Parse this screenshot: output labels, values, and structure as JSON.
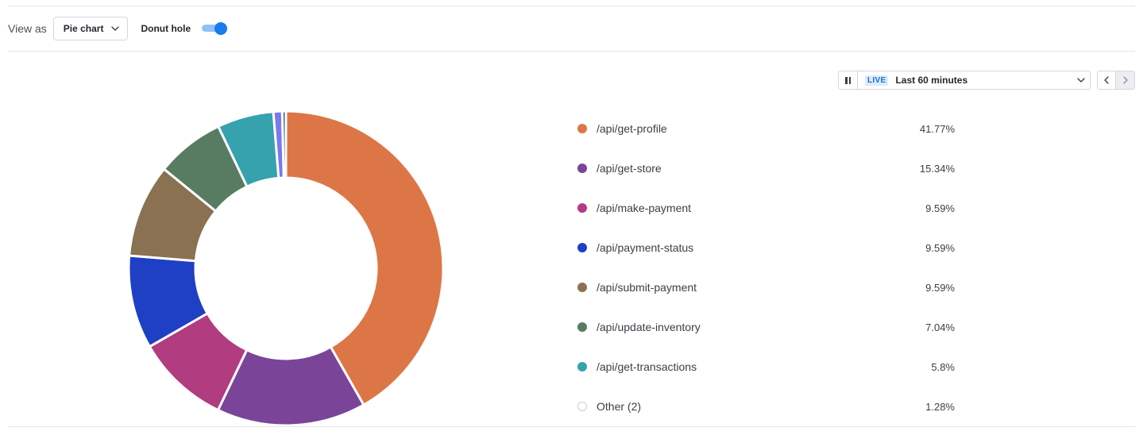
{
  "toolbar": {
    "view_as_label": "View as",
    "view_select_value": "Pie chart",
    "donut_label": "Donut hole",
    "donut_enabled": true
  },
  "time_picker": {
    "live_badge": "LIVE",
    "range_label": "Last 60 minutes"
  },
  "colors": {
    "accent": "#1a7ceb"
  },
  "icons": {
    "view_select": "chevron-down-icon",
    "pause": "pause-icon",
    "time_select": "chevron-down-icon",
    "prev": "chevron-left-icon",
    "next": "chevron-right-icon"
  },
  "chart_data": {
    "type": "pie",
    "donut": true,
    "legend_position": "right",
    "slices": [
      {
        "label": "/api/get-profile",
        "value": 41.77,
        "display": "41.77%",
        "color": "#dd7647"
      },
      {
        "label": "/api/get-store",
        "value": 15.34,
        "display": "15.34%",
        "color": "#7a4599"
      },
      {
        "label": "/api/make-payment",
        "value": 9.59,
        "display": "9.59%",
        "color": "#b13c80"
      },
      {
        "label": "/api/payment-status",
        "value": 9.59,
        "display": "9.59%",
        "color": "#1f3fc4"
      },
      {
        "label": "/api/submit-payment",
        "value": 9.59,
        "display": "9.59%",
        "color": "#8a7152"
      },
      {
        "label": "/api/update-inventory",
        "value": 7.04,
        "display": "7.04%",
        "color": "#587c62"
      },
      {
        "label": "/api/get-transactions",
        "value": 5.8,
        "display": "5.8%",
        "color": "#36a2ae"
      },
      {
        "label": "Other (2)",
        "value": 1.28,
        "display": "1.28%",
        "color": "#ffffff",
        "parts": [
          {
            "value": 0.9,
            "color": "#7b78ea"
          },
          {
            "value": 0.38,
            "color": "#256e9a"
          }
        ]
      }
    ]
  }
}
